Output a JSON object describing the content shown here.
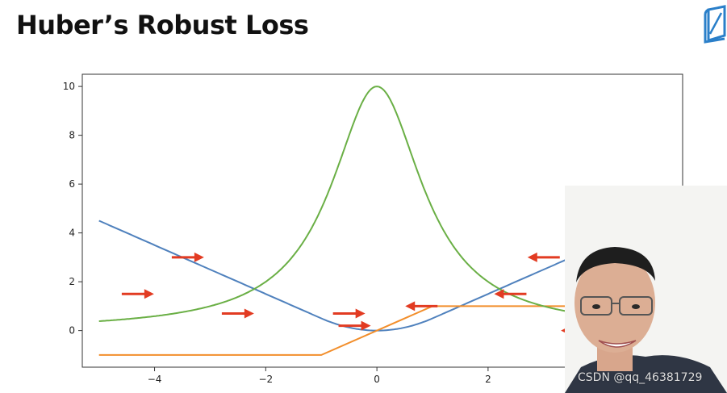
{
  "slide": {
    "title": "Huber’s Robust Loss",
    "logo_icon": "book-logo-icon",
    "watermark": "CSDN @qq_46381729"
  },
  "presenter": {
    "icon": "presenter-video-icon"
  },
  "chart_data": {
    "type": "line",
    "title": "",
    "xlabel": "",
    "ylabel": "",
    "xlim": [
      -5.3,
      5.5
    ],
    "ylim": [
      -1.5,
      10.5
    ],
    "xticks": [
      -4,
      -2,
      0,
      2
    ],
    "xtick_labels": [
      "−4",
      "−2",
      "0",
      "2"
    ],
    "yticks": [
      0,
      2,
      4,
      6,
      8,
      10
    ],
    "ytick_labels": [
      "0",
      "2",
      "4",
      "6",
      "8",
      "10"
    ],
    "grid": false,
    "legend": "none",
    "series": [
      {
        "color": "#4f81bd",
        "x": [
          -5,
          -4,
          -3,
          -2,
          -1.5,
          -1,
          -0.5,
          0,
          0.5,
          1,
          1.5,
          2,
          3,
          4,
          5
        ],
        "y": [
          4.5,
          3.5,
          2.5,
          1.5,
          1.0,
          0.5,
          0.125,
          0,
          0.125,
          0.5,
          1.0,
          1.5,
          2.5,
          3.5,
          4.5
        ]
      },
      {
        "color": "#f28e2b",
        "x": [
          -5,
          -1,
          1,
          5
        ],
        "y": [
          -1,
          -1,
          1,
          1
        ]
      },
      {
        "color": "#6aaf45",
        "x": [
          -5,
          -4,
          -3,
          -2.5,
          -2,
          -1.5,
          -1,
          -0.5,
          0,
          0.5,
          1,
          1.5,
          2,
          2.5,
          3,
          3.5
        ],
        "y": [
          0.13,
          0.32,
          0.9,
          1.62,
          2.87,
          4.84,
          7.48,
          9.45,
          10,
          9.45,
          7.48,
          4.84,
          2.87,
          1.62,
          0.9,
          0.55
        ]
      }
    ],
    "annotations": [
      {
        "type": "arrow",
        "direction": "right",
        "x": -4.3,
        "y": 1.5,
        "color": "#e23b22"
      },
      {
        "type": "arrow",
        "direction": "right",
        "x": -3.4,
        "y": 3.0,
        "color": "#e23b22"
      },
      {
        "type": "arrow",
        "direction": "right",
        "x": -2.5,
        "y": 0.7,
        "color": "#e23b22"
      },
      {
        "type": "arrow",
        "direction": "right",
        "x": -0.5,
        "y": 0.7,
        "color": "#e23b22"
      },
      {
        "type": "arrow",
        "direction": "right",
        "x": -0.4,
        "y": 0.2,
        "color": "#e23b22"
      },
      {
        "type": "arrow",
        "direction": "left",
        "x": 0.8,
        "y": 1.0,
        "color": "#e23b22"
      },
      {
        "type": "arrow",
        "direction": "left",
        "x": 2.4,
        "y": 1.5,
        "color": "#e23b22"
      },
      {
        "type": "arrow",
        "direction": "left",
        "x": 3.0,
        "y": 3.0,
        "color": "#e23b22"
      },
      {
        "type": "arrow",
        "direction": "left",
        "x": 3.6,
        "y": 0.0,
        "color": "#e23b22"
      }
    ]
  }
}
